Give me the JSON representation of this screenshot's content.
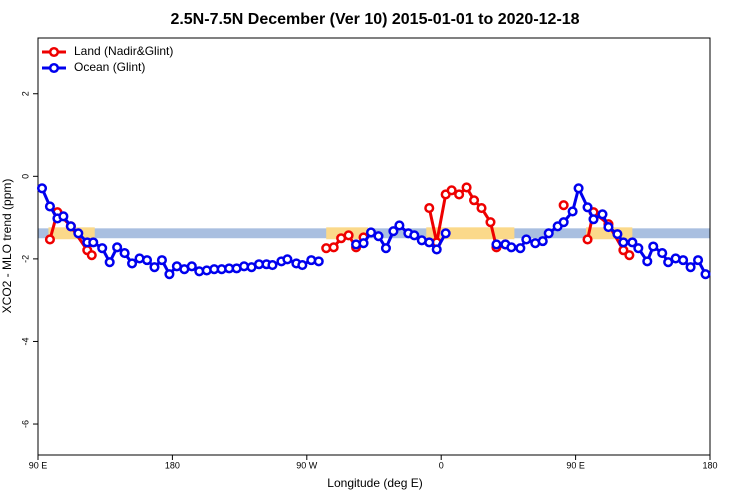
{
  "chart_data": {
    "type": "line",
    "title": "2.5N-7.5N December (Ver 10)   2015-01-01 to 2020-12-18",
    "x_label": "Longitude (deg E)",
    "y_label": "XCO2 - MLO trend (ppm)",
    "xlim": [
      90,
      540
    ],
    "ylim": [
      -6.75,
      3.35
    ],
    "xticks": [
      {
        "value": 90,
        "label": "90 E"
      },
      180,
      {
        "value": 270,
        "label": "90 W"
      },
      {
        "value": 360,
        "label": "0"
      },
      {
        "value": 450,
        "label": "90 E"
      },
      {
        "value": 540,
        "label": "180"
      }
    ],
    "yticks": [
      -6,
      -4,
      -2,
      0,
      2
    ],
    "legend": "top-left",
    "band": {
      "ylim": [
        -1.5,
        -1.26
      ],
      "color": "#a9bfe0",
      "land_color": "#fbd98a",
      "land_x": [
        [
          97,
          128
        ],
        [
          283,
          311
        ],
        [
          350,
          409
        ],
        [
          457,
          488
        ]
      ]
    },
    "series": [
      {
        "name": "Land (Nadir&Glint)",
        "color": "#ee0000",
        "x": [
          98,
          103,
          112,
          123,
          126,
          null,
          283,
          288,
          293,
          298,
          303,
          308,
          null,
          352,
          357,
          363,
          367,
          372,
          377,
          382,
          387,
          393,
          397,
          403,
          null,
          442,
          null,
          458,
          462,
          472,
          482,
          486
        ],
        "values": [
          -1.53,
          -0.87,
          -1.21,
          -1.79,
          -1.91,
          null,
          -1.74,
          -1.72,
          -1.5,
          -1.43,
          -1.72,
          -1.48,
          null,
          -0.77,
          -1.6,
          -0.44,
          -0.34,
          -0.44,
          -0.27,
          -0.58,
          -0.77,
          -1.11,
          -1.72,
          -1.65,
          null,
          -0.7,
          null,
          -1.53,
          -0.87,
          -1.16,
          -1.79,
          -1.91
        ]
      },
      {
        "name": "Ocean (Glint)",
        "color": "#0000ee",
        "x": [
          92.7,
          98,
          103,
          107,
          112,
          117,
          123,
          127,
          133,
          138,
          143,
          148,
          153,
          158,
          163,
          168,
          173,
          178,
          183,
          188,
          193,
          198,
          203,
          208,
          213,
          218,
          223,
          228,
          233,
          238,
          243,
          247,
          253,
          257,
          263,
          267,
          273,
          278,
          null,
          303,
          308,
          313,
          318,
          323,
          328,
          332,
          338,
          342,
          347,
          352,
          357,
          363,
          null,
          397,
          403,
          407,
          413,
          417,
          423,
          428,
          432,
          438,
          442,
          448,
          452,
          458,
          462,
          468,
          472,
          478,
          482,
          488,
          492,
          498,
          502,
          508,
          512,
          517,
          522,
          527,
          532,
          537
        ],
        "values": [
          -0.29,
          -0.73,
          -1.02,
          -0.97,
          -1.21,
          -1.38,
          -1.6,
          -1.6,
          -1.74,
          -2.08,
          -1.72,
          -1.86,
          -2.11,
          -1.99,
          -2.03,
          -2.2,
          -2.03,
          -2.37,
          -2.18,
          -2.25,
          -2.18,
          -2.3,
          -2.28,
          -2.25,
          -2.25,
          -2.23,
          -2.23,
          -2.18,
          -2.2,
          -2.13,
          -2.13,
          -2.15,
          -2.06,
          -2.01,
          -2.11,
          -2.15,
          -2.03,
          -2.06,
          null,
          -1.65,
          -1.62,
          -1.36,
          -1.45,
          -1.74,
          -1.33,
          -1.19,
          -1.38,
          -1.43,
          -1.55,
          -1.6,
          -1.77,
          -1.38,
          null,
          -1.65,
          -1.65,
          -1.72,
          -1.74,
          -1.53,
          -1.62,
          -1.57,
          -1.38,
          -1.21,
          -1.11,
          -0.85,
          -0.29,
          -0.75,
          -1.04,
          -0.92,
          -1.23,
          -1.4,
          -1.6,
          -1.6,
          -1.74,
          -2.06,
          -1.7,
          -1.86,
          -2.08,
          -1.99,
          -2.03,
          -2.2,
          -2.03,
          -2.37
        ]
      }
    ]
  }
}
